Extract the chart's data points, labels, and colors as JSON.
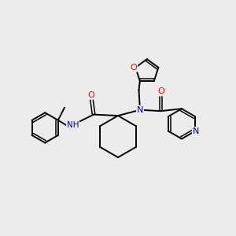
{
  "background_color": "#ececec",
  "bond_color": "#000000",
  "atom_colors": {
    "O": "#ff0000",
    "N": "#0000cc",
    "C": "#000000"
  },
  "figsize": [
    3.0,
    3.0
  ],
  "dpi": 100
}
